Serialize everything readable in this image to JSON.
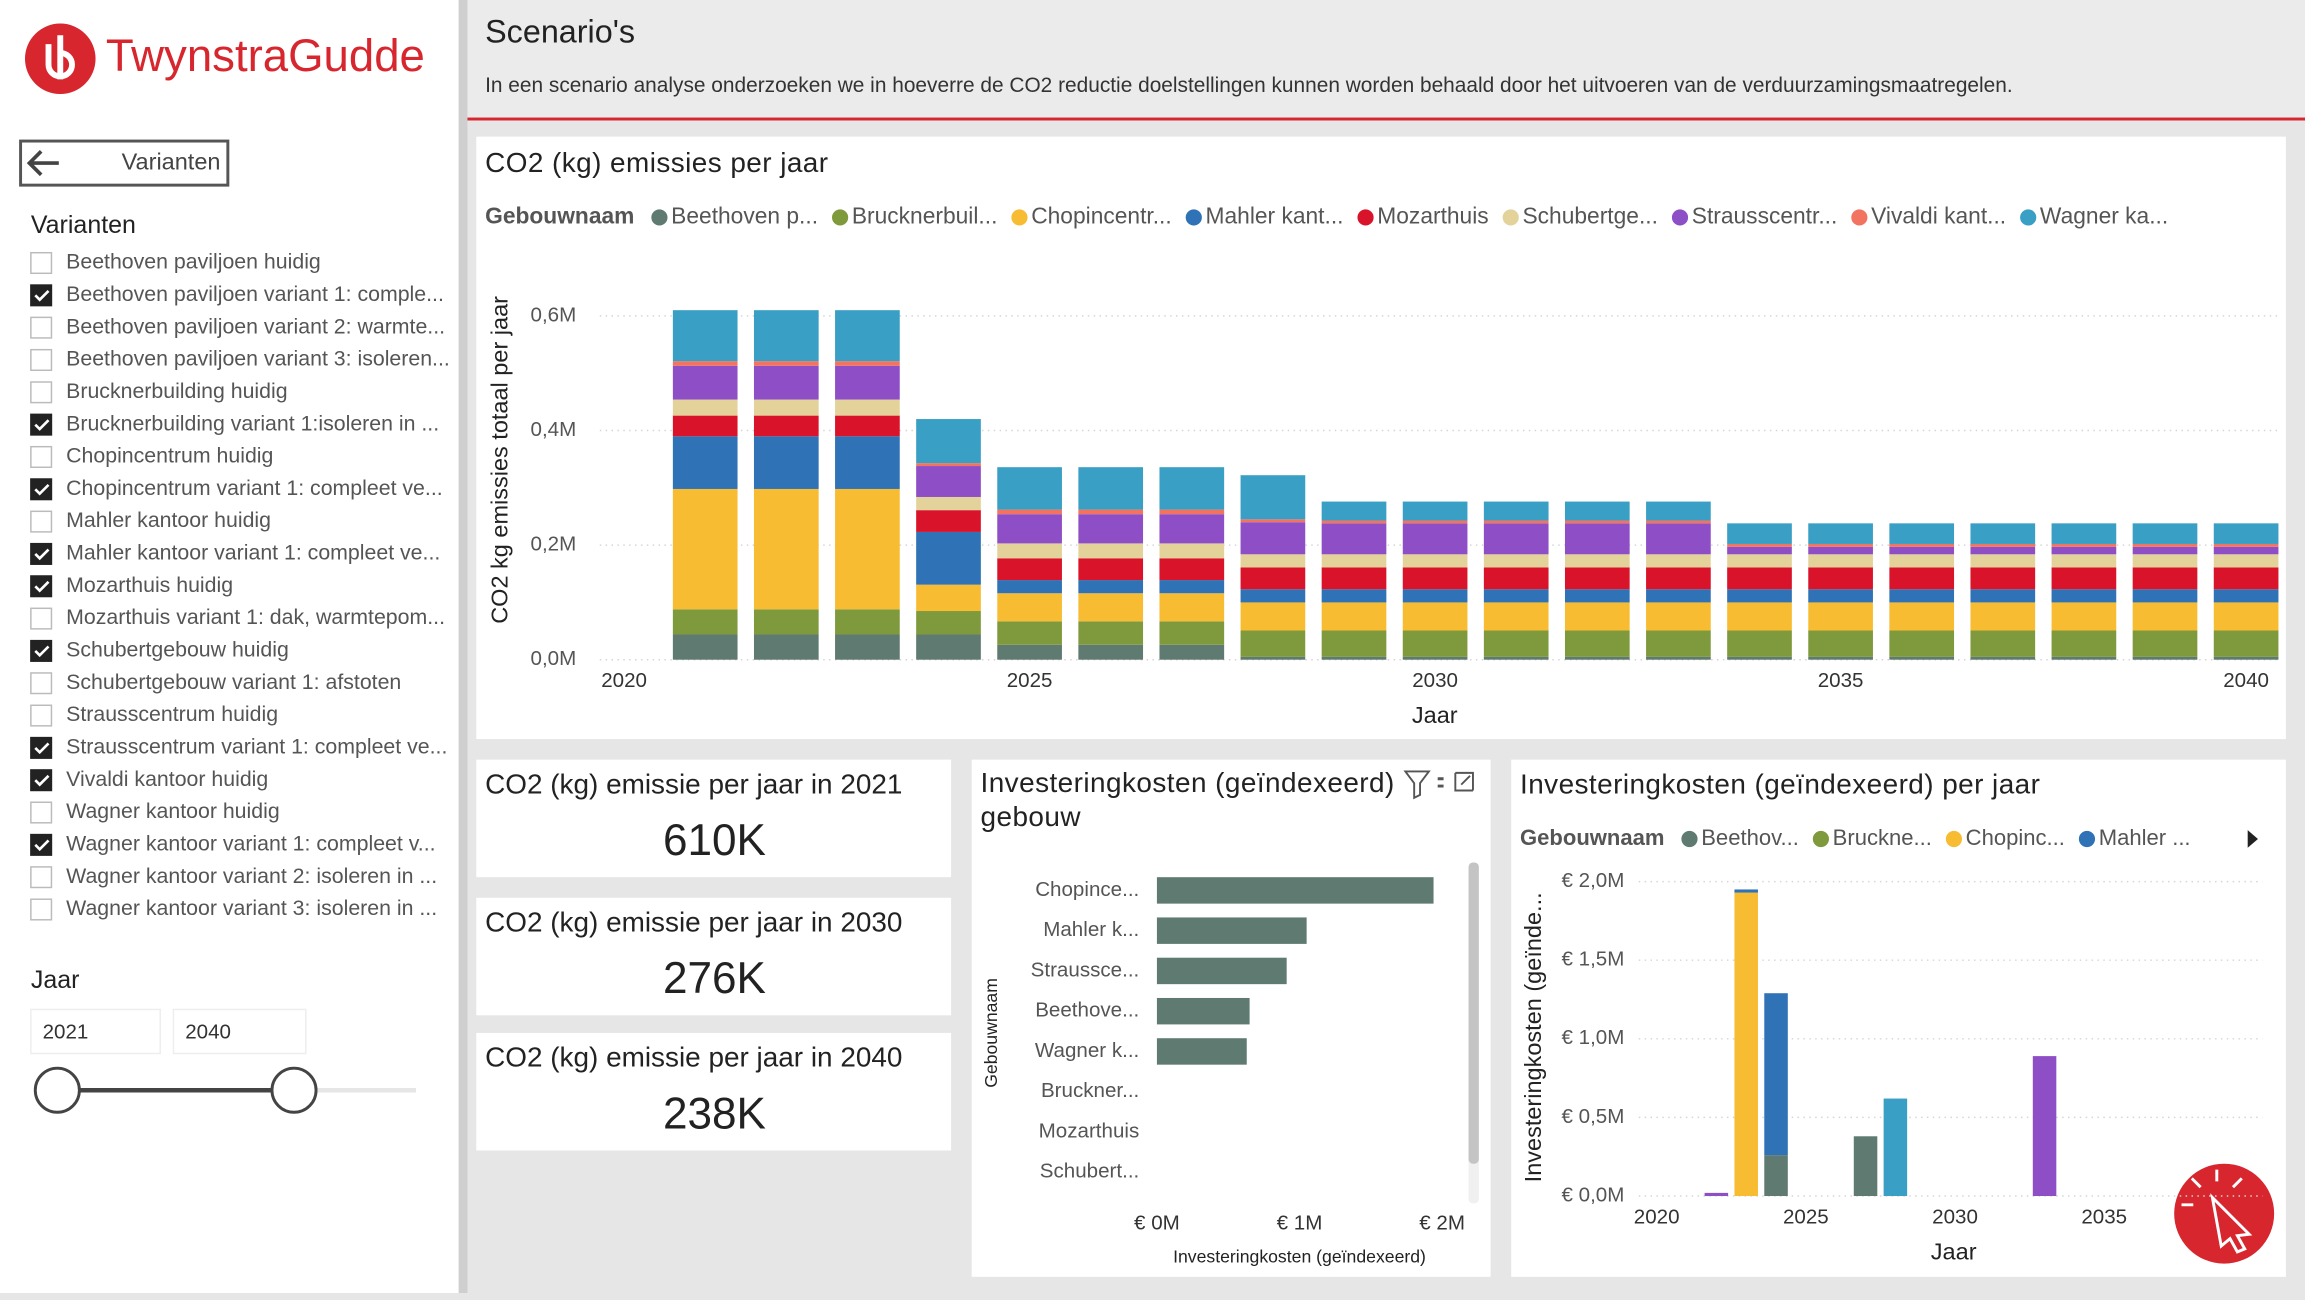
{
  "header": {
    "logo": "TwynstraGudde"
  },
  "sidebar": {
    "back_button": "Varianten",
    "slicer_title": "Varianten",
    "items": [
      {
        "label": "Beethoven paviljoen huidig",
        "checked": false
      },
      {
        "label": "Beethoven paviljoen variant 1: comple...",
        "checked": true
      },
      {
        "label": "Beethoven paviljoen variant 2: warmte...",
        "checked": false
      },
      {
        "label": "Beethoven paviljoen variant 3: isoleren...",
        "checked": false
      },
      {
        "label": "Brucknerbuilding huidig",
        "checked": false
      },
      {
        "label": "Brucknerbuilding variant 1:isoleren in ...",
        "checked": true
      },
      {
        "label": "Chopincentrum huidig",
        "checked": false
      },
      {
        "label": "Chopincentrum variant 1: compleet ve...",
        "checked": true
      },
      {
        "label": "Mahler kantoor huidig",
        "checked": false
      },
      {
        "label": "Mahler kantoor variant 1: compleet ve...",
        "checked": true
      },
      {
        "label": "Mozarthuis huidig",
        "checked": true
      },
      {
        "label": "Mozarthuis variant 1: dak, warmtepom...",
        "checked": false
      },
      {
        "label": "Schubertgebouw huidig",
        "checked": true
      },
      {
        "label": "Schubertgebouw variant 1: afstoten",
        "checked": false
      },
      {
        "label": "Strausscentrum huidig",
        "checked": false
      },
      {
        "label": "Strausscentrum variant 1: compleet ve...",
        "checked": true
      },
      {
        "label": "Vivaldi kantoor huidig",
        "checked": true
      },
      {
        "label": "Wagner kantoor huidig",
        "checked": false
      },
      {
        "label": "Wagner kantoor variant 1: compleet v...",
        "checked": true
      },
      {
        "label": "Wagner kantoor variant 2: isoleren in ...",
        "checked": false
      },
      {
        "label": "Wagner kantoor variant 3: isoleren in ...",
        "checked": false
      }
    ],
    "year_title": "Jaar",
    "year_range": [
      2021,
      2040
    ]
  },
  "page": {
    "title": "Scenario's",
    "description": "In een scenario analyse onderzoeken we in hoeverre de CO2 reductie doelstellingen kunnen worden behaald door het uitvoeren van de verduurzamingsmaatregelen."
  },
  "cards": [
    {
      "title": "CO2 (kg) emissie per jaar in 2021",
      "value": "610K"
    },
    {
      "title": "CO2 (kg) emissie per jaar in 2030",
      "value": "276K"
    },
    {
      "title": "CO2 (kg) emissie per jaar in 2040",
      "value": "238K"
    }
  ],
  "chart_data": [
    {
      "type": "stacked_bar",
      "title": "CO2 (kg) emissies per jaar",
      "legend_title": "Gebouwnaam",
      "x_label": "Jaar",
      "y_label": "CO2 kg emissies totaal per jaar",
      "grid": true,
      "x": [
        2021,
        2022,
        2023,
        2024,
        2025,
        2026,
        2027,
        2028,
        2029,
        2030,
        2031,
        2032,
        2033,
        2034,
        2035,
        2036,
        2037,
        2038,
        2039,
        2040
      ],
      "xlim": [
        2019.7,
        2040.4
      ],
      "xticks": [
        2020,
        2025,
        2030,
        2035,
        2040
      ],
      "ylim": [
        0,
        650000
      ],
      "yticks": [
        {
          "value": 0,
          "label": "0,0M"
        },
        {
          "value": 200000,
          "label": "0,2M"
        },
        {
          "value": 400000,
          "label": "0,4M"
        },
        {
          "value": 600000,
          "label": "0,6M"
        }
      ],
      "series": [
        {
          "name": "Beethoven p...",
          "color": "#5f7a70",
          "values": [
            44000,
            44000,
            44000,
            44000,
            26000,
            26000,
            26000,
            5000,
            5000,
            5000,
            5000,
            5000,
            5000,
            5000,
            5000,
            5000,
            5000,
            5000,
            5000,
            5000
          ]
        },
        {
          "name": "Brucknerbuil...",
          "color": "#7f9a3c",
          "values": [
            44000,
            44000,
            44000,
            41000,
            41000,
            41000,
            41000,
            46000,
            46000,
            46000,
            46000,
            46000,
            46000,
            46000,
            46000,
            46000,
            46000,
            46000,
            46000,
            46000
          ]
        },
        {
          "name": "Chopincentr...",
          "color": "#f8bc32",
          "values": [
            210000,
            210000,
            210000,
            46000,
            49000,
            49000,
            49000,
            49000,
            49000,
            49000,
            49000,
            49000,
            49000,
            49000,
            49000,
            49000,
            49000,
            49000,
            49000,
            49000
          ]
        },
        {
          "name": "Mahler kant...",
          "color": "#2f72b5",
          "values": [
            92000,
            92000,
            92000,
            92000,
            23000,
            23000,
            23000,
            23000,
            23000,
            23000,
            23000,
            23000,
            23000,
            23000,
            23000,
            23000,
            23000,
            23000,
            23000,
            23000
          ]
        },
        {
          "name": "Mozarthuis",
          "color": "#d9132a",
          "values": [
            36000,
            36000,
            36000,
            38000,
            38000,
            38000,
            38000,
            38000,
            38000,
            38000,
            38000,
            38000,
            38000,
            38000,
            38000,
            38000,
            38000,
            38000,
            38000,
            38000
          ]
        },
        {
          "name": "Schubertge...",
          "color": "#e3d39a",
          "values": [
            28000,
            28000,
            28000,
            23000,
            26000,
            26000,
            26000,
            23000,
            23000,
            23000,
            23000,
            23000,
            23000,
            23000,
            23000,
            23000,
            23000,
            23000,
            23000,
            23000
          ]
        },
        {
          "name": "Strausscentr...",
          "color": "#8e4ec6",
          "values": [
            59000,
            59000,
            59000,
            54000,
            51000,
            51000,
            51000,
            56000,
            54000,
            54000,
            54000,
            54000,
            54000,
            13000,
            13000,
            13000,
            13000,
            13000,
            13000,
            13000
          ]
        },
        {
          "name": "Vivaldi kant...",
          "color": "#f2735f",
          "values": [
            8000,
            8000,
            8000,
            5000,
            8000,
            8000,
            8000,
            5000,
            5000,
            5000,
            5000,
            5000,
            5000,
            5000,
            5000,
            5000,
            5000,
            5000,
            5000,
            5000
          ]
        },
        {
          "name": "Wagner ka...",
          "color": "#3a9fc4",
          "values": [
            89000,
            89000,
            89000,
            77000,
            74000,
            74000,
            74000,
            77000,
            33000,
            33000,
            33000,
            33000,
            33000,
            36000,
            36000,
            36000,
            36000,
            36000,
            36000,
            36000
          ]
        }
      ]
    },
    {
      "type": "horizontal_bar",
      "title": "Investeringkosten (geïndexeerd) per gebouw",
      "x_label": "Investeringkosten (geïndexeerd)",
      "y_label": "Gebouwnaam",
      "color": "#5f7a70",
      "categories": [
        "Chopince...",
        "Mahler k...",
        "Straussce...",
        "Beethove...",
        "Wagner k...",
        "Bruckner...",
        "Mozarthuis",
        "Schubert..."
      ],
      "values": [
        1940000,
        1050000,
        910000,
        650000,
        630000,
        0,
        0,
        0
      ],
      "xlim": [
        0,
        2200000
      ],
      "xticks": [
        {
          "value": 0,
          "label": "€ 0M"
        },
        {
          "value": 1000000,
          "label": "€ 1M"
        },
        {
          "value": 2000000,
          "label": "€ 2M"
        }
      ]
    },
    {
      "type": "stacked_bar",
      "title": "Investeringkosten (geïndexeerd) per jaar",
      "legend_title": "Gebouwnaam",
      "x_label": "Jaar",
      "y_label": "Investeringkosten (geïnde...",
      "grid": true,
      "x": [
        2021,
        2022,
        2023,
        2024,
        2025,
        2026,
        2027,
        2028,
        2029,
        2030,
        2031,
        2032,
        2033,
        2034,
        2035,
        2036,
        2037,
        2038,
        2039,
        2040
      ],
      "xlim": [
        2019.4,
        2040.3
      ],
      "xticks": [
        2020,
        2025,
        2030,
        2035
      ],
      "ylim": [
        0,
        2050000
      ],
      "yticks": [
        {
          "value": 0,
          "label": "€ 0,0M"
        },
        {
          "value": 500000,
          "label": "€ 0,5M"
        },
        {
          "value": 1000000,
          "label": "€ 1,0M"
        },
        {
          "value": 1500000,
          "label": "€ 1,5M"
        },
        {
          "value": 2000000,
          "label": "€ 2,0M"
        }
      ],
      "series": [
        {
          "name": "Beethov...",
          "color": "#5f7a70",
          "values": [
            0,
            0,
            0,
            260000,
            0,
            0,
            380000,
            0,
            0,
            0,
            0,
            0,
            0,
            0,
            0,
            0,
            0,
            0,
            0,
            0
          ]
        },
        {
          "name": "Bruckne...",
          "color": "#7f9a3c",
          "values": [
            0,
            0,
            0,
            0,
            0,
            0,
            0,
            0,
            0,
            0,
            0,
            0,
            0,
            0,
            0,
            0,
            0,
            0,
            0,
            0
          ]
        },
        {
          "name": "Chopinc...",
          "color": "#f8bc32",
          "values": [
            0,
            0,
            1930000,
            0,
            0,
            0,
            0,
            0,
            0,
            0,
            0,
            0,
            0,
            0,
            0,
            0,
            0,
            0,
            0,
            0
          ]
        },
        {
          "name": "Mahler ...",
          "color": "#2f72b5",
          "values": [
            0,
            0,
            20000,
            1030000,
            0,
            0,
            0,
            0,
            0,
            0,
            0,
            0,
            0,
            0,
            0,
            0,
            0,
            0,
            0,
            0
          ]
        },
        {
          "color": "#8e4ec6",
          "values": [
            0,
            20000,
            0,
            0,
            0,
            0,
            0,
            0,
            0,
            0,
            0,
            0,
            890000,
            0,
            0,
            0,
            0,
            0,
            0,
            0
          ]
        },
        {
          "color": "#3a9fc4",
          "values": [
            0,
            0,
            0,
            0,
            0,
            0,
            0,
            620000,
            0,
            0,
            0,
            0,
            0,
            0,
            0,
            0,
            0,
            0,
            0,
            0
          ]
        }
      ]
    }
  ]
}
